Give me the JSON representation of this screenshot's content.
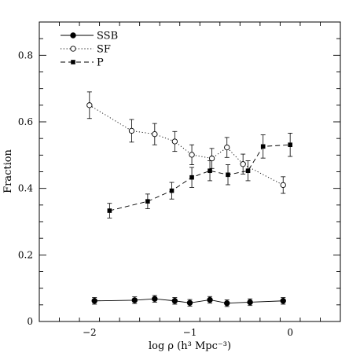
{
  "chart_data": {
    "type": "line",
    "xlabel": "log ρ (h³ Mpc⁻³)",
    "ylabel": "Fraction",
    "xlim": [
      -2.5,
      0.5
    ],
    "ylim": [
      0,
      0.9
    ],
    "xticks_major": [
      -2,
      -1,
      0
    ],
    "xtick_labels": [
      "−2",
      "−1",
      "0"
    ],
    "yticks_major": [
      0,
      0.2,
      0.4,
      0.6,
      0.8
    ],
    "ytick_labels": [
      "0",
      "0.2",
      "0.4",
      "0.6",
      "0.8"
    ],
    "legend_position": "top-left",
    "series": [
      {
        "name": "SSB",
        "style": "solid",
        "marker": "filled-circle",
        "x": [
          -1.95,
          -1.55,
          -1.35,
          -1.15,
          -1.0,
          -0.8,
          -0.63,
          -0.4,
          -0.07
        ],
        "y": [
          0.062,
          0.064,
          0.068,
          0.062,
          0.056,
          0.065,
          0.055,
          0.058,
          0.062
        ],
        "err": [
          0.01,
          0.01,
          0.01,
          0.01,
          0.01,
          0.01,
          0.01,
          0.01,
          0.01
        ]
      },
      {
        "name": "SF",
        "style": "dotted",
        "marker": "open-circle",
        "x": [
          -2.0,
          -1.58,
          -1.35,
          -1.15,
          -0.98,
          -0.78,
          -0.63,
          -0.47,
          -0.07
        ],
        "y": [
          0.65,
          0.573,
          0.563,
          0.541,
          0.501,
          0.49,
          0.523,
          0.473,
          0.41
        ],
        "err": [
          0.04,
          0.034,
          0.032,
          0.03,
          0.03,
          0.03,
          0.03,
          0.03,
          0.025
        ]
      },
      {
        "name": "P",
        "style": "dashed",
        "marker": "filled-square",
        "x": [
          -1.8,
          -1.42,
          -1.18,
          -0.98,
          -0.8,
          -0.62,
          -0.42,
          -0.27,
          0.0
        ],
        "y": [
          0.333,
          0.361,
          0.393,
          0.433,
          0.453,
          0.441,
          0.453,
          0.526,
          0.531
        ],
        "err": [
          0.022,
          0.022,
          0.025,
          0.03,
          0.03,
          0.03,
          0.03,
          0.035,
          0.035
        ]
      }
    ]
  }
}
